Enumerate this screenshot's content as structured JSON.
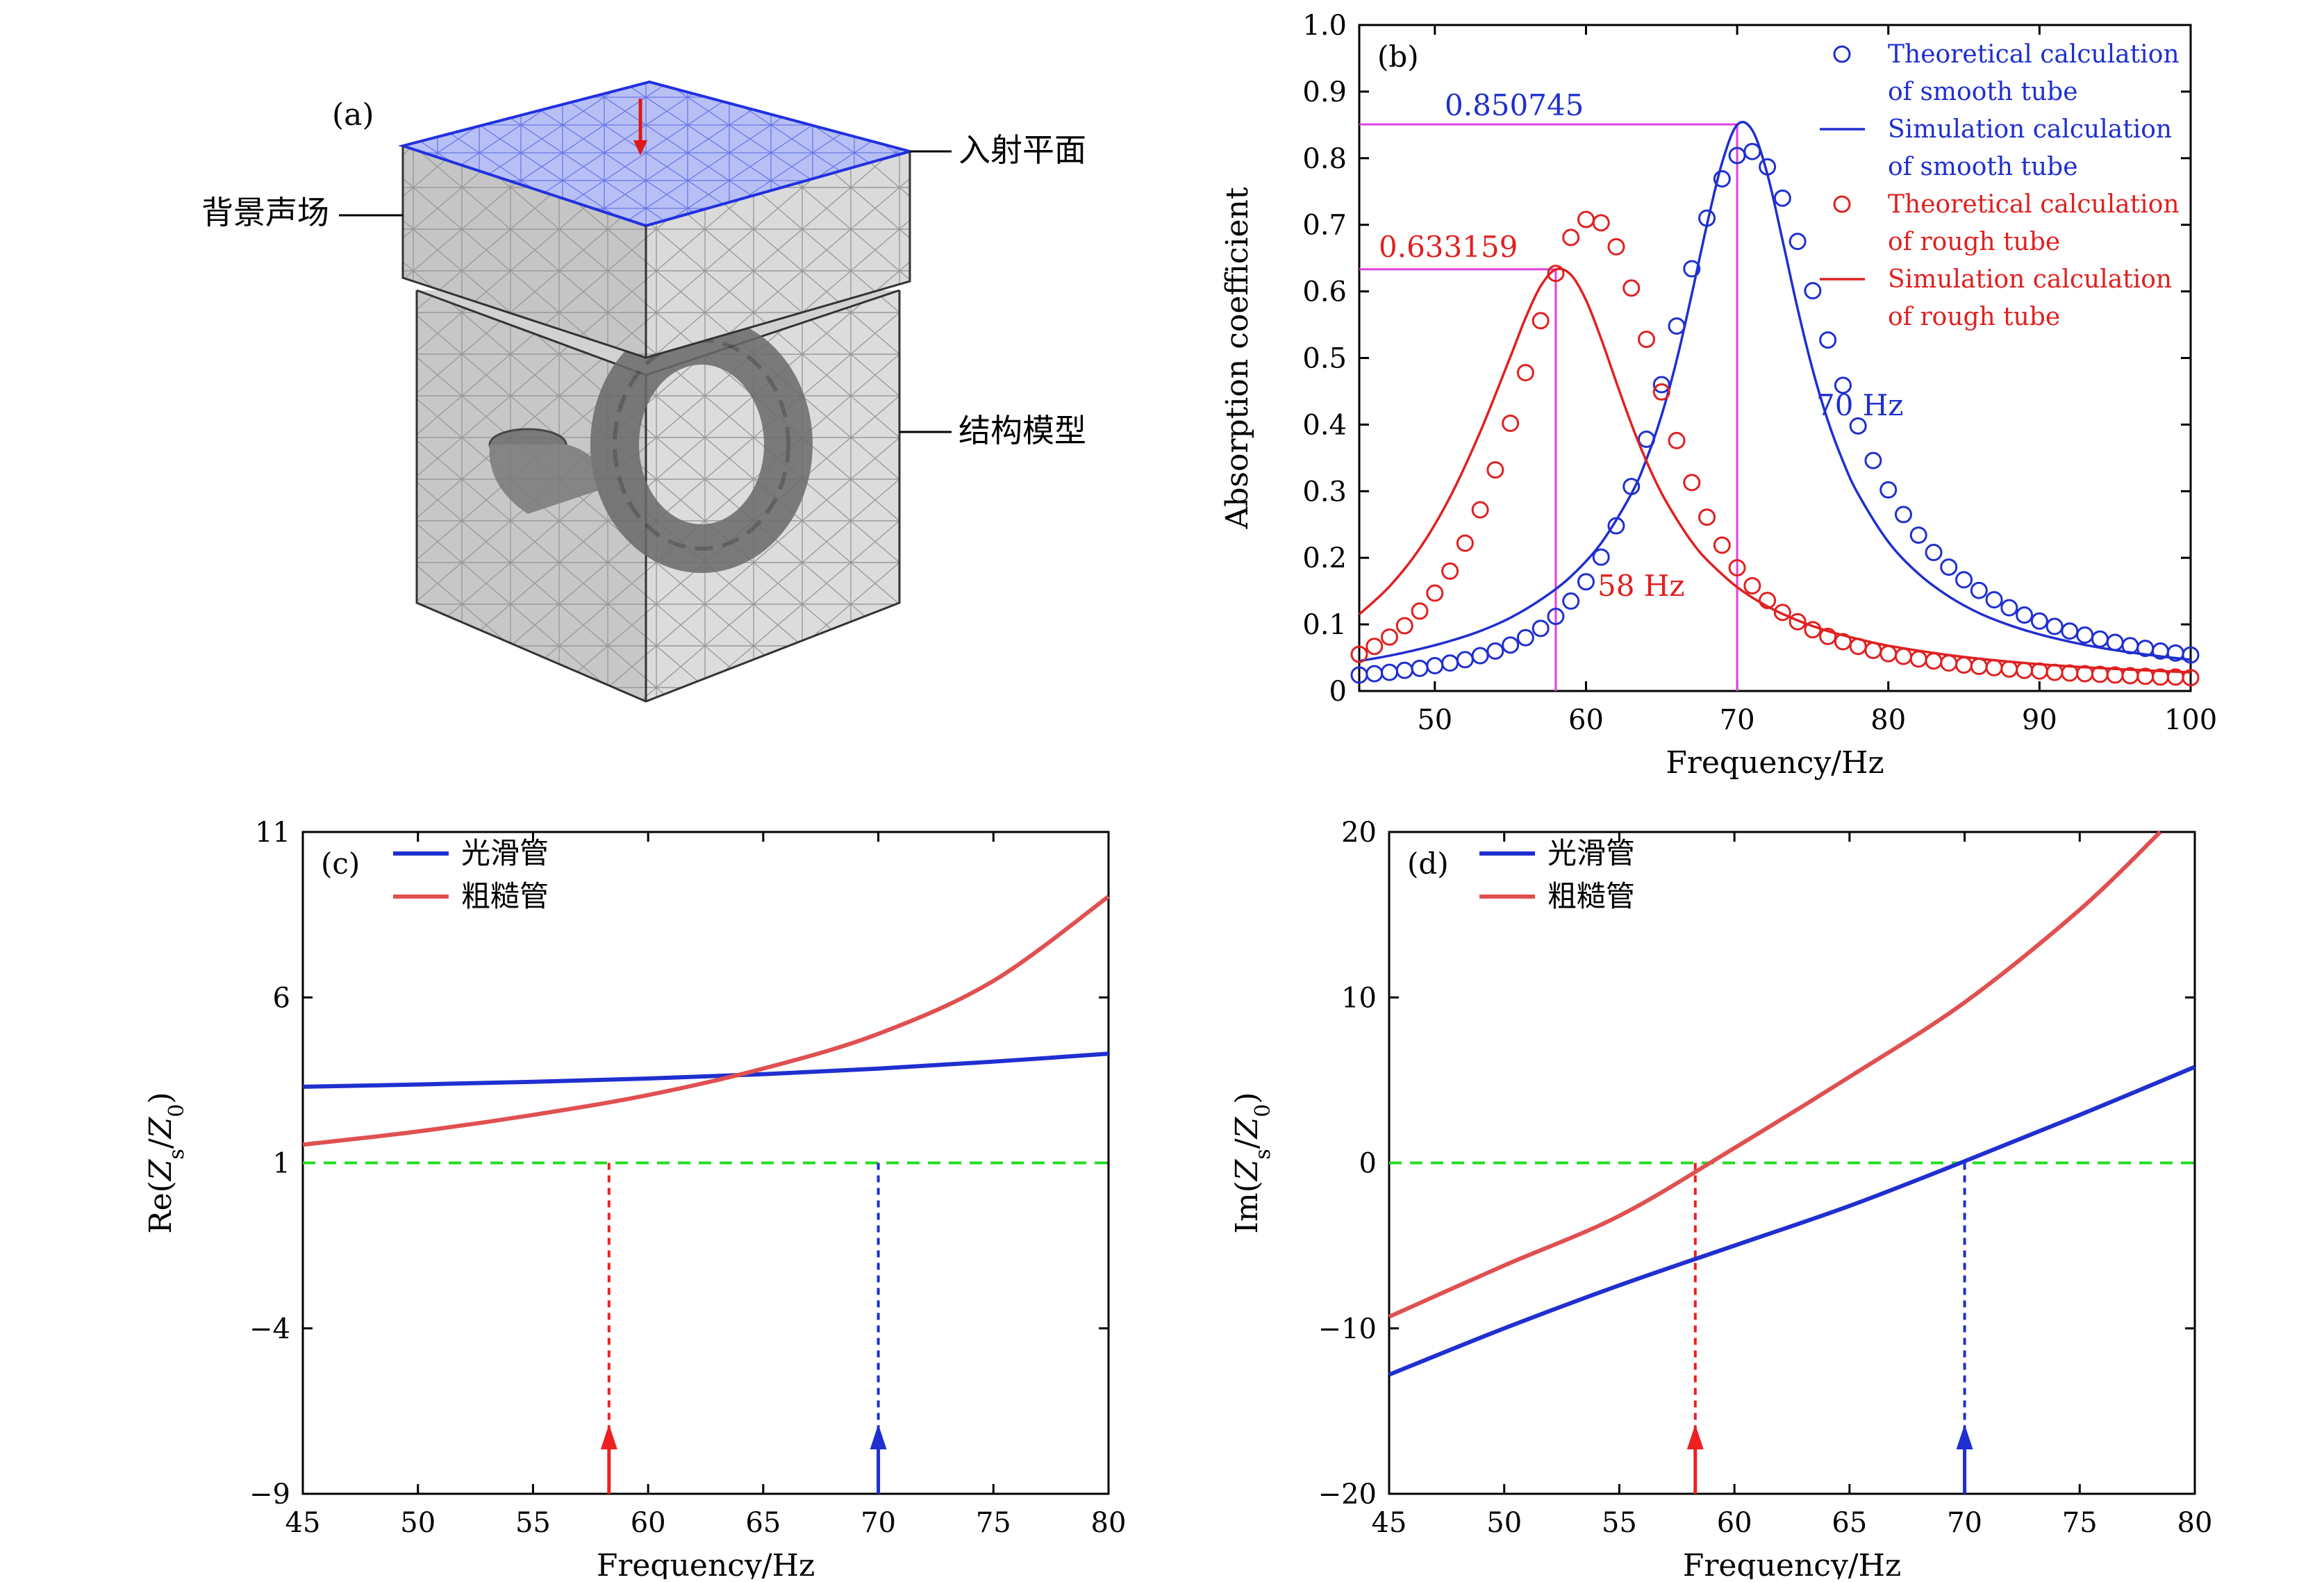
{
  "panel_a": {
    "letter": "(a)",
    "label_incident": "入射平面",
    "label_background": "背景声场",
    "label_structure": "结构模型"
  },
  "chart_data": [
    {
      "id": "b",
      "type": "scatter",
      "panel_letter": "(b)",
      "xlabel": "Frequency/Hz",
      "ylabel": "Absorption coefficient",
      "xlim": [
        45,
        100
      ],
      "ylim": [
        0,
        1.0
      ],
      "xticks": [
        50,
        60,
        70,
        80,
        90,
        100
      ],
      "yticks": [
        0,
        0.1,
        0.2,
        0.3,
        0.4,
        0.5,
        0.6,
        0.7,
        0.8,
        0.9,
        1.0
      ],
      "ytick_labels": [
        "0",
        "0.1",
        "0.2",
        "0.3",
        "0.4",
        "0.5",
        "0.6",
        "0.7",
        "0.8",
        "0.9",
        "1.0"
      ],
      "legend_position": "top-right",
      "series": [
        {
          "name_lines": [
            "Theoretical calculation",
            "of smooth tube"
          ],
          "kind": "markers",
          "color": "#1f2fd0",
          "x": [
            45,
            46,
            47,
            48,
            49,
            50,
            51,
            52,
            53,
            54,
            55,
            56,
            57,
            58,
            59,
            60,
            61,
            62,
            63,
            64,
            65,
            66,
            67,
            68,
            69,
            70,
            71,
            72,
            73,
            74,
            75,
            76,
            77,
            78,
            79,
            80,
            81,
            82,
            83,
            84,
            85,
            86,
            87,
            88,
            89,
            90,
            91,
            92,
            93,
            94,
            95,
            96,
            97,
            98,
            99,
            100
          ],
          "y": [
            0.024,
            0.026,
            0.028,
            0.031,
            0.034,
            0.038,
            0.042,
            0.047,
            0.053,
            0.06,
            0.069,
            0.08,
            0.094,
            0.112,
            0.135,
            0.164,
            0.201,
            0.248,
            0.307,
            0.378,
            0.46,
            0.548,
            0.634,
            0.71,
            0.769,
            0.804,
            0.81,
            0.787,
            0.74,
            0.675,
            0.601,
            0.527,
            0.459,
            0.398,
            0.346,
            0.302,
            0.265,
            0.234,
            0.208,
            0.186,
            0.167,
            0.151,
            0.137,
            0.125,
            0.114,
            0.105,
            0.097,
            0.09,
            0.084,
            0.078,
            0.073,
            0.068,
            0.064,
            0.06,
            0.057,
            0.054
          ]
        },
        {
          "name_lines": [
            "Simulation calculation",
            "of smooth tube"
          ],
          "kind": "line",
          "color": "#1f2fd0",
          "x": [
            45,
            47,
            49,
            51,
            53,
            55,
            57,
            59,
            61,
            63,
            64,
            65,
            66,
            67,
            68,
            69,
            70,
            71,
            72,
            73,
            74,
            75,
            76,
            77,
            78,
            80,
            82,
            84,
            86,
            88,
            90,
            92,
            94,
            96,
            98,
            100
          ],
          "y": [
            0.045,
            0.053,
            0.063,
            0.075,
            0.09,
            0.11,
            0.137,
            0.172,
            0.222,
            0.296,
            0.348,
            0.414,
            0.497,
            0.596,
            0.7,
            0.793,
            0.85,
            0.842,
            0.776,
            0.677,
            0.574,
            0.482,
            0.406,
            0.345,
            0.296,
            0.224,
            0.176,
            0.142,
            0.117,
            0.099,
            0.085,
            0.074,
            0.065,
            0.058,
            0.052,
            0.047
          ]
        },
        {
          "name_lines": [
            "Theoretical calculation",
            "of rough tube"
          ],
          "kind": "markers",
          "color": "#e02020",
          "x": [
            45,
            46,
            47,
            48,
            49,
            50,
            51,
            52,
            53,
            54,
            55,
            56,
            57,
            58,
            59,
            60,
            61,
            62,
            63,
            64,
            65,
            66,
            67,
            68,
            69,
            70,
            71,
            72,
            73,
            74,
            75,
            76,
            77,
            78,
            79,
            80,
            81,
            82,
            83,
            84,
            85,
            86,
            87,
            88,
            89,
            90,
            91,
            92,
            93,
            94,
            95,
            96,
            97,
            98,
            99,
            100
          ],
          "y": [
            0.055,
            0.067,
            0.081,
            0.098,
            0.12,
            0.147,
            0.18,
            0.222,
            0.272,
            0.332,
            0.402,
            0.478,
            0.556,
            0.627,
            0.681,
            0.708,
            0.703,
            0.667,
            0.605,
            0.528,
            0.449,
            0.376,
            0.313,
            0.261,
            0.219,
            0.185,
            0.158,
            0.136,
            0.118,
            0.104,
            0.092,
            0.082,
            0.074,
            0.067,
            0.061,
            0.056,
            0.052,
            0.048,
            0.045,
            0.042,
            0.039,
            0.037,
            0.035,
            0.033,
            0.031,
            0.03,
            0.028,
            0.027,
            0.026,
            0.025,
            0.024,
            0.023,
            0.022,
            0.021,
            0.021,
            0.02
          ]
        },
        {
          "name_lines": [
            "Simulation calculation",
            "of rough tube"
          ],
          "kind": "line",
          "color": "#e02020",
          "x": [
            45,
            47,
            49,
            51,
            53,
            55,
            56,
            57,
            58,
            59,
            60,
            61,
            62,
            63,
            64,
            65,
            66,
            67,
            68,
            70,
            72,
            74,
            76,
            78,
            80,
            84,
            88,
            92,
            96,
            100
          ],
          "y": [
            0.115,
            0.157,
            0.214,
            0.291,
            0.389,
            0.502,
            0.56,
            0.608,
            0.633,
            0.625,
            0.587,
            0.529,
            0.464,
            0.401,
            0.345,
            0.297,
            0.258,
            0.224,
            0.197,
            0.156,
            0.127,
            0.106,
            0.09,
            0.078,
            0.068,
            0.054,
            0.044,
            0.037,
            0.032,
            0.028
          ]
        }
      ],
      "annotations": {
        "smooth_peak_value": "0.850745",
        "rough_peak_value": "0.633159",
        "smooth_peak_freq": "70 Hz",
        "rough_peak_freq": "58 Hz",
        "smooth_peak": [
          70,
          0.850745
        ],
        "rough_peak": [
          58,
          0.633159
        ],
        "guide_color": "#e040e0"
      }
    },
    {
      "id": "c",
      "type": "line",
      "panel_letter": "(c)",
      "xlabel": "Frequency/Hz",
      "ylabel": "Re(Zs/Z0)",
      "xlim": [
        45,
        80
      ],
      "ylim": [
        -9,
        11
      ],
      "xticks": [
        45,
        50,
        55,
        60,
        65,
        70,
        75,
        80
      ],
      "yticks": [
        -9,
        -4,
        1,
        6,
        11
      ],
      "ytick_labels": [
        "−9",
        "−4",
        "1",
        "6",
        "11"
      ],
      "legend_position": "top-left",
      "reference_line": {
        "y": 1,
        "color": "#22dd22"
      },
      "markers": [
        {
          "x": 58.3,
          "color": "#ee2020"
        },
        {
          "x": 70,
          "color": "#1f2fd0"
        }
      ],
      "series": [
        {
          "name": "光滑管",
          "color": "#1f2fd0",
          "x": [
            45,
            50,
            55,
            60,
            65,
            70,
            75,
            80
          ],
          "y": [
            3.3,
            3.37,
            3.45,
            3.55,
            3.68,
            3.85,
            4.06,
            4.3
          ]
        },
        {
          "name": "粗糙管",
          "color": "#e05050",
          "x": [
            45,
            50,
            55,
            60,
            65,
            70,
            75,
            80
          ],
          "y": [
            1.55,
            1.95,
            2.45,
            3.05,
            3.85,
            4.9,
            6.5,
            9.05
          ]
        }
      ]
    },
    {
      "id": "d",
      "type": "line",
      "panel_letter": "(d)",
      "xlabel": "Frequency/Hz",
      "ylabel": "Im(Zs/Z0)",
      "xlim": [
        45,
        80
      ],
      "ylim": [
        -20,
        20
      ],
      "xticks": [
        45,
        50,
        55,
        60,
        65,
        70,
        75,
        80
      ],
      "yticks": [
        -20,
        -10,
        0,
        10,
        20
      ],
      "ytick_labels": [
        "−20",
        "−10",
        "0",
        "10",
        "20"
      ],
      "legend_position": "top-left",
      "reference_line": {
        "y": 0,
        "color": "#22dd22"
      },
      "markers": [
        {
          "x": 58.3,
          "color": "#ee2020"
        },
        {
          "x": 70,
          "color": "#1f2fd0"
        }
      ],
      "series": [
        {
          "name": "光滑管",
          "color": "#1f2fd0",
          "x": [
            45,
            50,
            55,
            60,
            65,
            70,
            75,
            80
          ],
          "y": [
            -12.8,
            -10.0,
            -7.4,
            -5.0,
            -2.6,
            0.1,
            2.9,
            5.8
          ]
        },
        {
          "name": "粗糙管",
          "color": "#e05050",
          "x": [
            45,
            50,
            55,
            60,
            65,
            70,
            75,
            78.5
          ],
          "y": [
            -9.3,
            -6.2,
            -3.2,
            0.9,
            5.2,
            9.7,
            15.3,
            20
          ]
        }
      ]
    }
  ]
}
